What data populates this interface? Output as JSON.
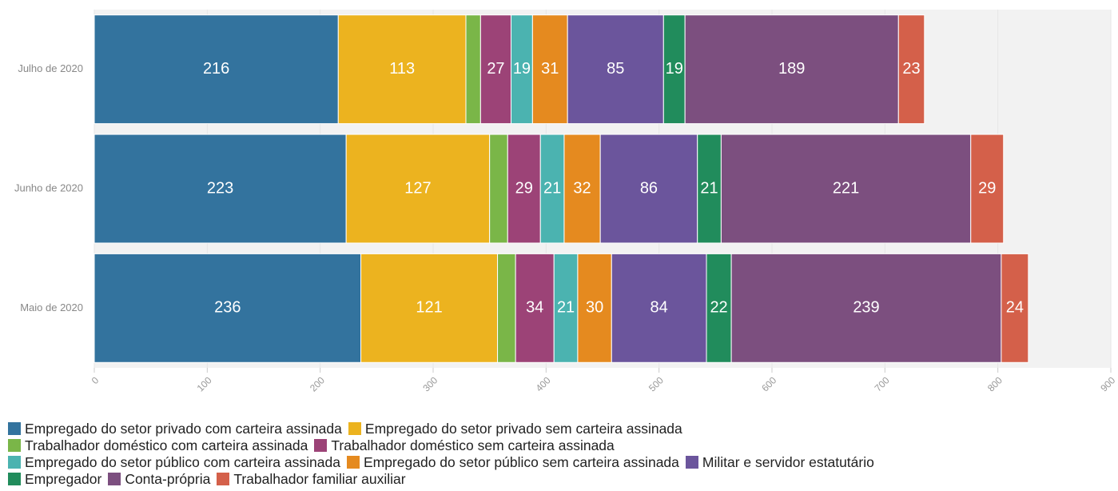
{
  "chart_data": {
    "type": "stacked_bar_horizontal",
    "categories": [
      "Julho de 2020",
      "Junho de 2020",
      "Maio de 2020"
    ],
    "series": [
      {
        "name": "Empregado do setor privado com carteira assinada",
        "color": "#33739e",
        "values": [
          216,
          223,
          236
        ]
      },
      {
        "name": "Empregado do setor privado sem carteira assinada",
        "color": "#ecb31f",
        "values": [
          113,
          127,
          121
        ]
      },
      {
        "name": "Trabalhador doméstico com carteira assinada",
        "color": "#7ab648",
        "values": [
          13,
          16,
          16
        ]
      },
      {
        "name": "Trabalhador doméstico sem carteira assinada",
        "color": "#9c4377",
        "values": [
          27,
          29,
          34
        ]
      },
      {
        "name": "Empregado do setor público com carteira assinada",
        "color": "#4bb3b0",
        "values": [
          19,
          21,
          21
        ]
      },
      {
        "name": "Empregado do setor público sem carteira assinada",
        "color": "#e58a1f",
        "values": [
          31,
          32,
          30
        ]
      },
      {
        "name": "Militar e servidor estatutário",
        "color": "#6b559c",
        "values": [
          85,
          86,
          84
        ]
      },
      {
        "name": "Empregador",
        "color": "#218c5c",
        "values": [
          19,
          21,
          22
        ]
      },
      {
        "name": "Conta-própria",
        "color": "#7c4f7f",
        "values": [
          189,
          221,
          239
        ]
      },
      {
        "name": "Trabalhador familiar auxiliar",
        "color": "#d4604a",
        "values": [
          23,
          29,
          24
        ]
      }
    ],
    "xlim": [
      0,
      900
    ],
    "xticks": [
      0,
      100,
      200,
      300,
      400,
      500,
      600,
      700,
      800,
      900
    ],
    "grid": true,
    "legend": "bottom"
  }
}
